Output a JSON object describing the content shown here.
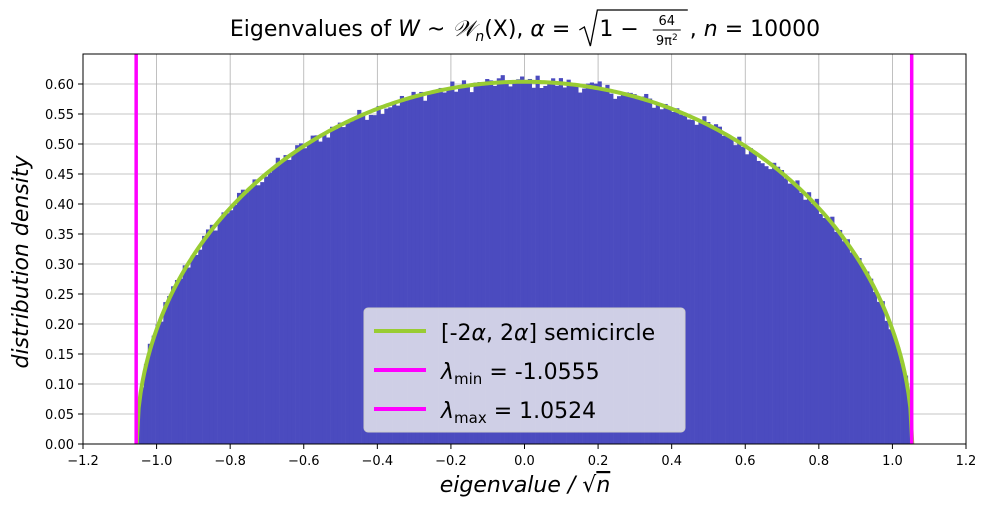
{
  "chart_data": {
    "type": "histogram",
    "title": {
      "prefix": "Eigenvalues of ",
      "W": "W",
      "sim": " ~ ",
      "Wn_script": "𝒲",
      "Wn_sub": "n",
      "Wn_arg": "(X), ",
      "alpha": "α",
      "eq": " = ",
      "one_minus": "1 − ",
      "frac_num": "64",
      "frac_den": "9π",
      "frac_den_sup": "2",
      "n_part_sep": ", ",
      "n_sym": "n",
      "n_eq": " = 10000"
    },
    "xlabel": "eigenvalue / ",
    "xlabel_sqrt": "√",
    "xlabel_n": "n",
    "ylabel": "distribution density",
    "xlim": [
      -1.2,
      1.2
    ],
    "ylim": [
      0.0,
      0.65
    ],
    "xticks": [
      -1.2,
      -1.0,
      -0.8,
      -0.6,
      -0.4,
      -0.2,
      0.0,
      0.2,
      0.4,
      0.6,
      0.8,
      1.0,
      1.2
    ],
    "xtick_labels": [
      "−1.2",
      "−1.0",
      "−0.8",
      "−0.6",
      "−0.4",
      "−0.2",
      "0.0",
      "0.2",
      "0.4",
      "0.6",
      "0.8",
      "1.0",
      "1.2"
    ],
    "yticks": [
      0.0,
      0.05,
      0.1,
      0.15,
      0.2,
      0.25,
      0.3,
      0.35,
      0.4,
      0.45,
      0.5,
      0.55,
      0.6
    ],
    "ytick_labels": [
      "0.00",
      "0.05",
      "0.10",
      "0.15",
      "0.20",
      "0.25",
      "0.30",
      "0.35",
      "0.40",
      "0.45",
      "0.50",
      "0.55",
      "0.60"
    ],
    "grid": true,
    "histogram": {
      "color": "#4b4bbf",
      "range": [
        -1.0555,
        1.0524
      ],
      "bin_count": 200,
      "noise_amplitude": 0.012
    },
    "semicircle": {
      "label_parts": [
        "[-2",
        "α",
        ", 2",
        "α",
        "] semicircle"
      ],
      "radius": 1.054,
      "peak": 0.6038,
      "color": "#99cc33"
    },
    "lambda_min": {
      "value": -1.0555,
      "label_sym": "λ",
      "label_sub": "min",
      "label_val": " = -1.0555",
      "color": "#ff00ff"
    },
    "lambda_max": {
      "value": 1.0524,
      "label_sym": "λ",
      "label_sub": "max",
      "label_val": " = 1.0524",
      "color": "#ff00ff"
    },
    "legend_position": "lower-center"
  }
}
